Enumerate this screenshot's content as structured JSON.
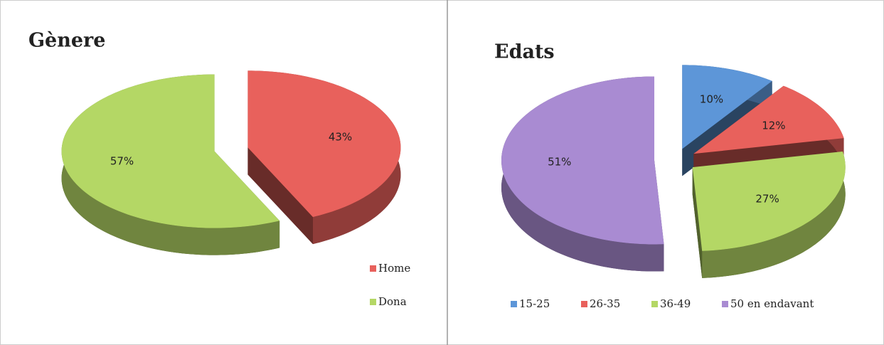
{
  "chart_data": [
    {
      "type": "pie",
      "title": "Gènere",
      "categories": [
        "Home",
        "Dona"
      ],
      "values": [
        43,
        57
      ],
      "value_labels": [
        "43%",
        "57%"
      ],
      "colors": [
        "#e8615c",
        "#b4d765"
      ],
      "legend": "right"
    },
    {
      "type": "pie",
      "title": "Edats",
      "categories": [
        "15-25",
        "26-35",
        "36-49",
        "50 en endavant"
      ],
      "values": [
        10,
        12,
        27,
        51
      ],
      "value_labels": [
        "10%",
        "12%",
        "27%",
        "51%"
      ],
      "colors": [
        "#5d96d8",
        "#e8615c",
        "#b4d765",
        "#a98bd2"
      ],
      "legend": "bottom"
    }
  ]
}
